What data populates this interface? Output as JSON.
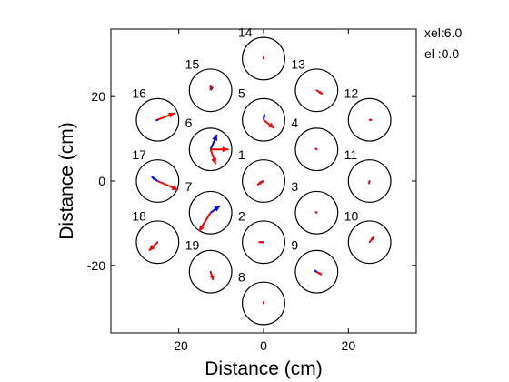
{
  "chart_data": {
    "type": "scatter",
    "xlabel": "Distance (cm)",
    "ylabel": "Distance (cm)",
    "xlim": [
      -36,
      36
    ],
    "ylim": [
      -36,
      36
    ],
    "xticks": [
      -20,
      0,
      20
    ],
    "yticks": [
      -20,
      0,
      20
    ],
    "grid": false,
    "annotations": [
      {
        "id": "xel",
        "text": "xel:6.0"
      },
      {
        "id": "el",
        "text": "el :0.0"
      }
    ],
    "circle_radius": 5,
    "arrow_colors": {
      "primary": "#ff0000",
      "secondary": "#0000ff"
    },
    "beams": [
      {
        "label": "1",
        "x": 0,
        "y": 0,
        "red": [
          [
            -1.5,
            -0.9
          ]
        ],
        "blue": [
          [
            -0.8,
            -0.3
          ]
        ]
      },
      {
        "label": "2",
        "x": 0,
        "y": -14.5,
        "red": [
          [
            -1.2,
            0
          ]
        ],
        "blue": [
          [
            -0.6,
            0
          ]
        ]
      },
      {
        "label": "3",
        "x": 12.5,
        "y": -7.5,
        "red": [
          [
            -0.3,
            0.3
          ]
        ],
        "blue": [
          [
            0,
            0
          ]
        ]
      },
      {
        "label": "4",
        "x": 12.5,
        "y": 7.5,
        "red": [
          [
            -0.3,
            0.3
          ]
        ],
        "blue": [
          [
            0,
            0
          ]
        ]
      },
      {
        "label": "5",
        "x": 0,
        "y": 14.5,
        "red": [
          [
            2.5,
            -2.0
          ]
        ],
        "blue": [
          [
            0.2,
            1.4
          ]
        ]
      },
      {
        "label": "6",
        "x": -12.5,
        "y": 7.5,
        "red": [
          [
            4.2,
            0
          ],
          [
            1.2,
            -3.5
          ]
        ],
        "blue": [
          [
            1.5,
            3.5
          ]
        ]
      },
      {
        "label": "7",
        "x": -12.5,
        "y": -7.5,
        "red": [
          [
            -2.7,
            -4.4
          ]
        ],
        "blue": [
          [
            2.2,
            1.6
          ]
        ]
      },
      {
        "label": "8",
        "x": 0,
        "y": -29,
        "red": [
          [
            0,
            0.5
          ]
        ],
        "blue": [
          [
            0,
            0
          ]
        ]
      },
      {
        "label": "9",
        "x": 12.5,
        "y": -21.5,
        "red": [
          [
            1.2,
            -0.7
          ]
        ],
        "blue": [
          [
            -0.5,
            0.3
          ]
        ]
      },
      {
        "label": "10",
        "x": 25,
        "y": -14.5,
        "red": [
          [
            1.0,
            1.3
          ]
        ],
        "blue": [
          [
            0,
            0
          ]
        ]
      },
      {
        "label": "11",
        "x": 25,
        "y": 0,
        "red": [
          [
            -0.2,
            -0.7
          ]
        ],
        "blue": [
          [
            0,
            0
          ]
        ]
      },
      {
        "label": "12",
        "x": 25,
        "y": 14.5,
        "red": [
          [
            0.6,
            0
          ]
        ],
        "blue": [
          [
            0,
            0
          ]
        ]
      },
      {
        "label": "13",
        "x": 12.5,
        "y": 21.5,
        "red": [
          [
            1.4,
            -0.9
          ]
        ],
        "blue": [
          [
            0,
            0
          ]
        ]
      },
      {
        "label": "14",
        "x": 0,
        "y": 29,
        "red": [
          [
            0,
            0.5
          ]
        ],
        "blue": [
          [
            0,
            0
          ]
        ]
      },
      {
        "label": "15",
        "x": -12.5,
        "y": 21.5,
        "red": [
          [
            0,
            1.2
          ]
        ],
        "blue": [
          [
            0.5,
            0.8
          ]
        ]
      },
      {
        "label": "16",
        "x": -25,
        "y": 14.5,
        "red": [
          [
            4.0,
            1.6
          ]
        ],
        "blue": [
          [
            -0.4,
            -0.2
          ]
        ]
      },
      {
        "label": "17",
        "x": -25,
        "y": 0,
        "red": [
          [
            4.8,
            -2.1
          ]
        ],
        "blue": [
          [
            -1.4,
            1.0
          ]
        ]
      },
      {
        "label": "18",
        "x": -25,
        "y": -14.5,
        "red": [
          [
            -2.0,
            -2.0
          ]
        ],
        "blue": [
          [
            0,
            0
          ]
        ]
      },
      {
        "label": "19",
        "x": -12.5,
        "y": -21.5,
        "red": [
          [
            0.6,
            -2.0
          ]
        ],
        "blue": [
          [
            0,
            0
          ]
        ]
      }
    ]
  }
}
